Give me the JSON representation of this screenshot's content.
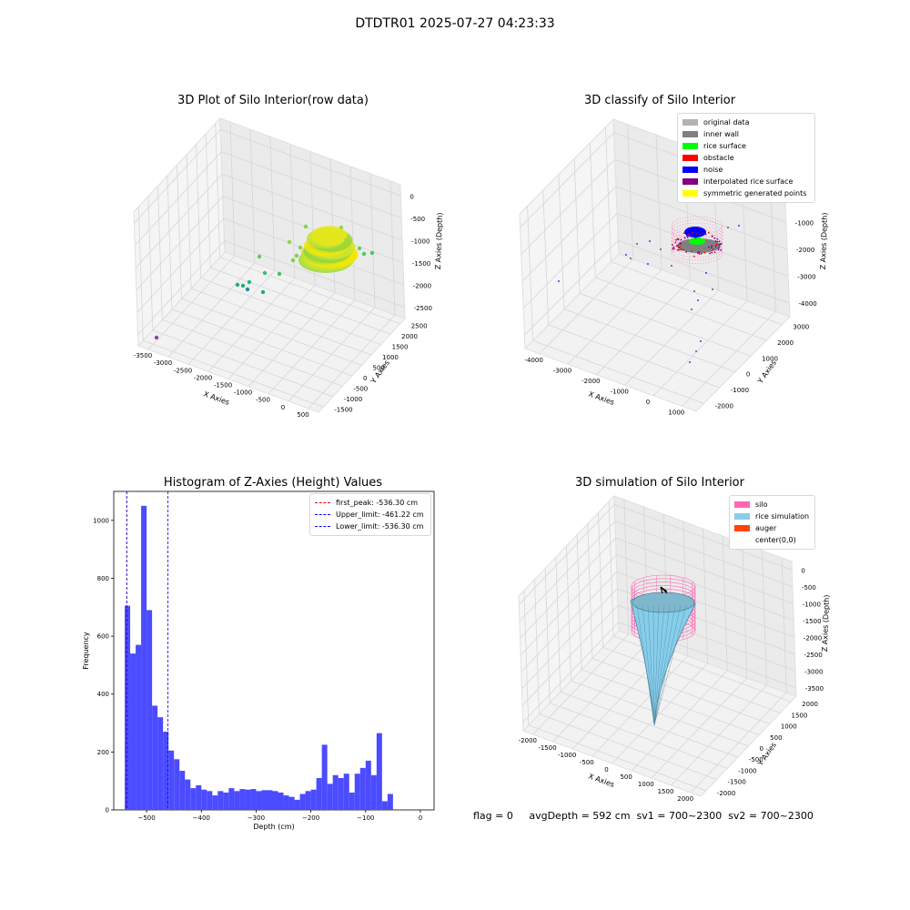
{
  "suptitle": "DTDTR01 2025-07-27 04:23:33",
  "panels": {
    "tl": {
      "title": "3D Plot of Silo Interior(row data)",
      "xlabel": "X Axies",
      "ylabel": "Y Axies",
      "zlabel": "Z Axies (Depth)",
      "xticks": [
        "-3500",
        "-3000",
        "-2500",
        "-2000",
        "-1500",
        "-1000",
        "-500",
        "0",
        "500"
      ],
      "yticks": [
        "-1500",
        "-1000",
        "-500",
        "0",
        "500",
        "1000",
        "1500",
        "2000",
        "2500"
      ],
      "zticks": [
        "0",
        "-500",
        "-1000",
        "-1500",
        "-2000",
        "-2500"
      ]
    },
    "tr": {
      "title": "3D classify of Silo Interior",
      "xlabel": "X Axies",
      "ylabel": "Y Axies",
      "zlabel": "Z Axies (Depth)",
      "xticks": [
        "-4000",
        "-3000",
        "-2000",
        "-1000",
        "0",
        "1000"
      ],
      "yticks": [
        "-2000",
        "-1000",
        "0",
        "1000",
        "2000",
        "3000"
      ],
      "zticks": [
        "0",
        "-1000",
        "-2000",
        "-3000",
        "-4000"
      ],
      "legend": [
        {
          "label": "original data",
          "color": "#b2b2b2"
        },
        {
          "label": "inner wall",
          "color": "#808080"
        },
        {
          "label": "rice surface",
          "color": "#00ff00"
        },
        {
          "label": "obstacle",
          "color": "#ff0000"
        },
        {
          "label": "noise",
          "color": "#0000ff"
        },
        {
          "label": "interpolated rice surface",
          "color": "#800080"
        },
        {
          "label": "symmetric generated points",
          "color": "#ffff00"
        }
      ]
    },
    "br": {
      "title": "3D simulation of Silo Interior",
      "xlabel": "X Axies",
      "ylabel": "Y Axies",
      "zlabel": "Z Axies (Depth)",
      "xticks": [
        "-2000",
        "-1500",
        "-1000",
        "-500",
        "0",
        "500",
        "1000",
        "1500",
        "2000"
      ],
      "yticks": [
        "-2000",
        "-1500",
        "-1000",
        "-500",
        "0",
        "500",
        "1000",
        "1500",
        "2000"
      ],
      "zticks": [
        "0",
        "-500",
        "-1000",
        "-1500",
        "-2000",
        "-2500",
        "-3000",
        "-3500"
      ],
      "legend": [
        {
          "label": "silo",
          "color": "#ff69b4"
        },
        {
          "label": "rice simulation",
          "color": "#87ceeb"
        },
        {
          "label": "auger",
          "color": "#ff4500"
        },
        {
          "label": "center(0,0)",
          "color": "#ffffff"
        }
      ]
    }
  },
  "chart_data": [
    {
      "type": "heatmap",
      "title": "3D Plot of Silo Interior(row data)",
      "xlabel": "X Axies",
      "ylabel": "Y Axies",
      "zlabel": "Z Axies (Depth)",
      "xlim": [
        -3600,
        600
      ],
      "ylim": [
        -1600,
        2600
      ],
      "zlim": [
        -2700,
        0
      ]
    },
    {
      "type": "scatter",
      "title": "3D classify of Silo Interior",
      "xlabel": "X Axies",
      "ylabel": "Y Axies",
      "zlabel": "Z Axies (Depth)",
      "xlim": [
        -4200,
        1100
      ],
      "ylim": [
        -2100,
        3200
      ],
      "zlim": [
        -4600,
        0
      ],
      "series": [
        {
          "name": "original data"
        },
        {
          "name": "inner wall"
        },
        {
          "name": "rice surface"
        },
        {
          "name": "obstacle"
        },
        {
          "name": "noise"
        },
        {
          "name": "interpolated rice surface"
        },
        {
          "name": "symmetric generated points"
        }
      ]
    },
    {
      "type": "bar",
      "title": "Histogram of Z-Axies (Height) Values",
      "xlabel": "Depth (cm)",
      "ylabel": "Frequency",
      "xlim": [
        -560,
        25
      ],
      "ylim": [
        0,
        1100
      ],
      "xticks": [
        -500,
        -400,
        -300,
        -200,
        -100,
        0
      ],
      "yticks": [
        0,
        200,
        400,
        600,
        800,
        1000
      ],
      "bin_start": -540,
      "bin_width": 10,
      "values": [
        705,
        540,
        570,
        1050,
        690,
        360,
        320,
        270,
        205,
        175,
        135,
        105,
        75,
        85,
        70,
        65,
        50,
        65,
        60,
        75,
        65,
        72,
        70,
        72,
        65,
        68,
        68,
        65,
        60,
        50,
        45,
        35,
        55,
        65,
        70,
        110,
        225,
        90,
        120,
        110,
        125,
        60,
        125,
        145,
        170,
        120,
        265,
        30,
        55
      ],
      "lines": [
        {
          "label": "first_peak: -536.30 cm",
          "x": -536.3,
          "color": "#ff0000"
        },
        {
          "label": "Upper_limit: -461.22 cm",
          "x": -461.22,
          "color": "#0000ff"
        },
        {
          "label": "Lower_limit: -536.30 cm",
          "x": -536.3,
          "color": "#0000ff"
        }
      ],
      "bar_color": "#4b4bff"
    },
    {
      "type": "area",
      "title": "3D simulation of Silo Interior",
      "xlabel": "X Axies",
      "ylabel": "Y Axies",
      "zlabel": "Z Axies (Depth)",
      "xlim": [
        -2100,
        2100
      ],
      "ylim": [
        -2100,
        2100
      ],
      "zlim": [
        -3900,
        300
      ],
      "series": [
        {
          "name": "silo"
        },
        {
          "name": "rice simulation"
        },
        {
          "name": "auger"
        },
        {
          "name": "center(0,0)"
        }
      ]
    }
  ],
  "footer": "flag = 0     avgDepth = 592 cm  sv1 = 700~2300  sv2 = 700~2300"
}
